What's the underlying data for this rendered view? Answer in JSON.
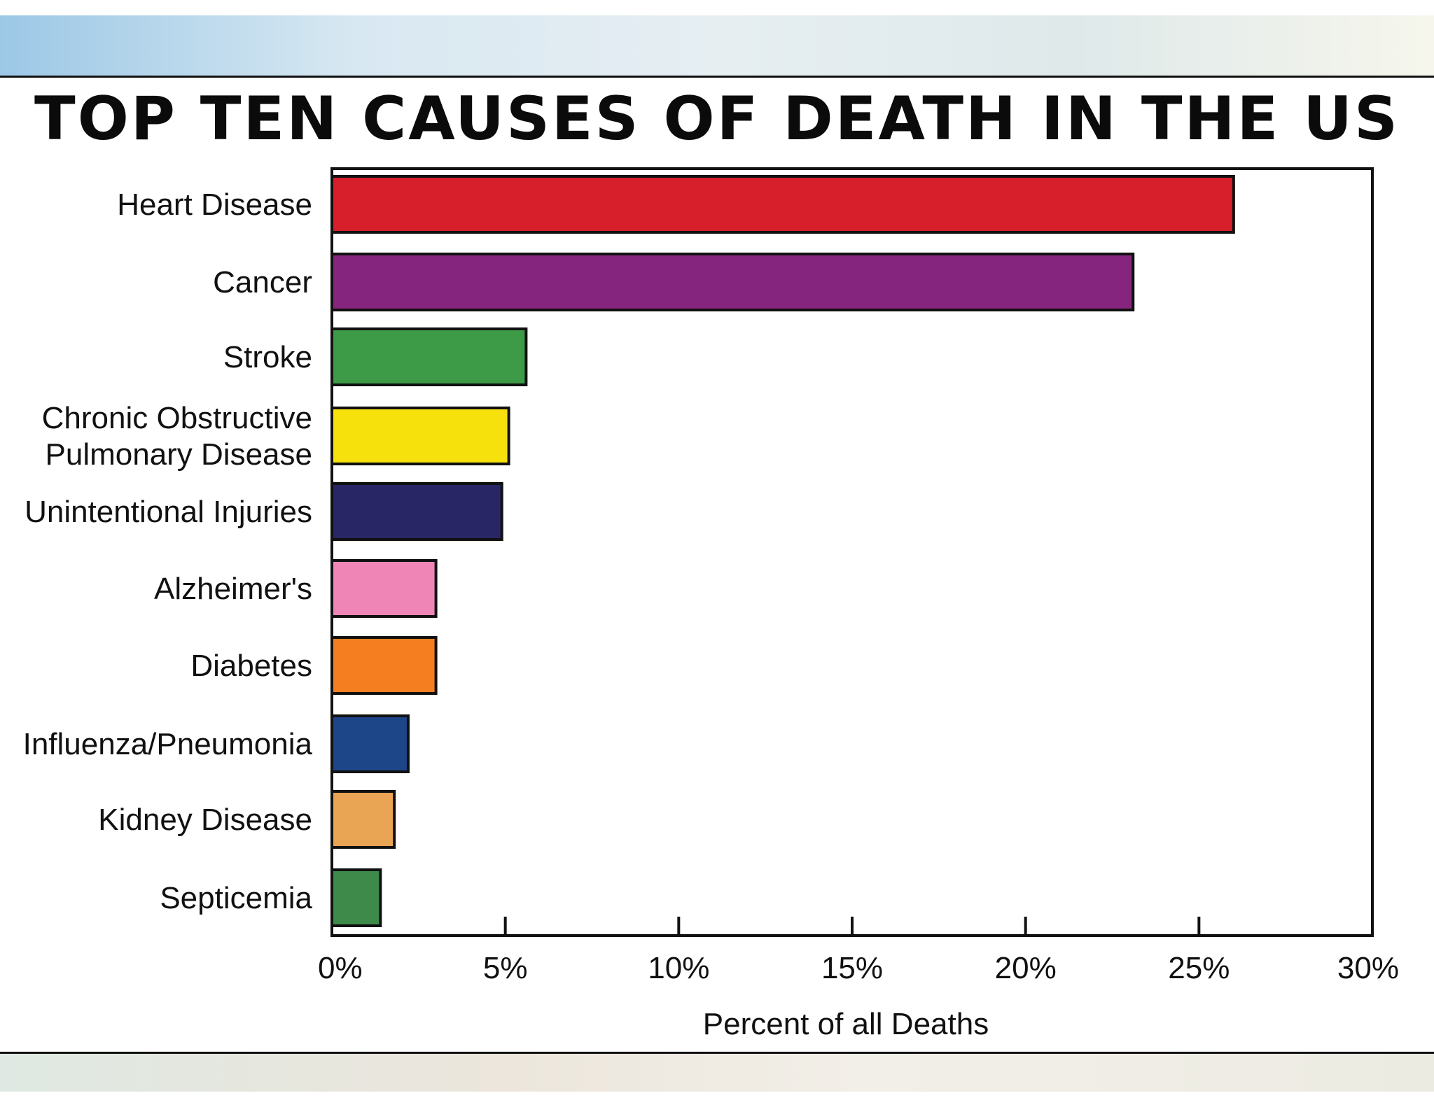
{
  "title": "TOP TEN CAUSES OF DEATH IN THE US",
  "chart_data": {
    "type": "bar",
    "orientation": "horizontal",
    "title": "TOP TEN CAUSES OF DEATH IN THE US",
    "xlabel": "Percent of all Deaths",
    "ylabel": "",
    "xlim": [
      0,
      30
    ],
    "xticks": [
      "0%",
      "5%",
      "10%",
      "15%",
      "20%",
      "25%",
      "30%"
    ],
    "grid": false,
    "legend": "none",
    "categories": [
      [
        "Heart Disease"
      ],
      [
        "Cancer"
      ],
      [
        "Stroke"
      ],
      [
        "Chronic Obstructive",
        "Pulmonary Disease"
      ],
      [
        "Unintentional Injuries"
      ],
      [
        "Alzheimer's"
      ],
      [
        "Diabetes"
      ],
      [
        "Influenza/Pneumonia"
      ],
      [
        "Kidney Disease"
      ],
      [
        "Septicemia"
      ]
    ],
    "values": [
      26.0,
      23.1,
      5.6,
      5.1,
      4.9,
      3.0,
      3.0,
      2.2,
      1.8,
      1.4
    ],
    "colors": [
      "#d71f2b",
      "#86257d",
      "#3d9b48",
      "#f7e10d",
      "#282664",
      "#ef84b6",
      "#f57f20",
      "#1d4689",
      "#e9a553",
      "#3d8a4b"
    ]
  }
}
